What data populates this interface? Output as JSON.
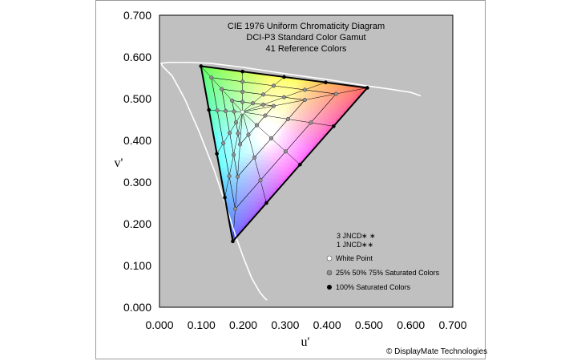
{
  "chart_data": {
    "type": "scatter",
    "title_lines": [
      "CIE 1976 Uniform Chromaticity Diagram",
      "DCI-P3 Standard Color Gamut",
      "41 Reference Colors"
    ],
    "xlabel": "u'",
    "ylabel": "v'",
    "xlim": [
      0,
      0.7
    ],
    "ylim": [
      0,
      0.7
    ],
    "x_ticks": [
      "0.000",
      "0.100",
      "0.200",
      "0.300",
      "0.400",
      "0.500",
      "0.600",
      "0.700"
    ],
    "y_ticks": [
      "0.000",
      "0.100",
      "0.200",
      "0.300",
      "0.400",
      "0.500",
      "0.600",
      "0.700"
    ],
    "plot_background": "#c0c0c0",
    "gamut_triangle": {
      "red": [
        0.496,
        0.526
      ],
      "green": [
        0.099,
        0.578
      ],
      "blue": [
        0.175,
        0.158
      ]
    },
    "white_point": [
      0.198,
      0.468
    ],
    "spectrum_locus": [
      [
        0.257,
        0.017
      ],
      [
        0.253,
        0.02
      ],
      [
        0.24,
        0.035
      ],
      [
        0.22,
        0.07
      ],
      [
        0.2,
        0.12
      ],
      [
        0.182,
        0.17
      ],
      [
        0.16,
        0.24
      ],
      [
        0.13,
        0.33
      ],
      [
        0.095,
        0.42
      ],
      [
        0.06,
        0.5
      ],
      [
        0.03,
        0.555
      ],
      [
        0.007,
        0.578
      ],
      [
        0.004,
        0.585
      ],
      [
        0.025,
        0.587
      ],
      [
        0.07,
        0.587
      ],
      [
        0.12,
        0.585
      ],
      [
        0.2,
        0.575
      ],
      [
        0.3,
        0.56
      ],
      [
        0.4,
        0.546
      ],
      [
        0.5,
        0.53
      ],
      [
        0.55,
        0.523
      ],
      [
        0.6,
        0.515
      ],
      [
        0.623,
        0.507
      ]
    ],
    "series": [
      {
        "name": "White Point",
        "color": "#ffffff"
      },
      {
        "name": "25% 50% 75% Saturated Colors",
        "color": "#909090"
      },
      {
        "name": "100% Saturated Colors",
        "color": "#000000"
      }
    ],
    "jncd_rows": [
      {
        "label": "3 JNCD",
        "marks": "∗ ∗"
      },
      {
        "label": "1 JNCD",
        "marks": "∗∗"
      }
    ],
    "credit": "© DisplayMate Technologies",
    "colors": {
      "locus": "#ffffff",
      "grid": "#000000",
      "midpoint": "#909090",
      "vertex": "#000000"
    }
  }
}
